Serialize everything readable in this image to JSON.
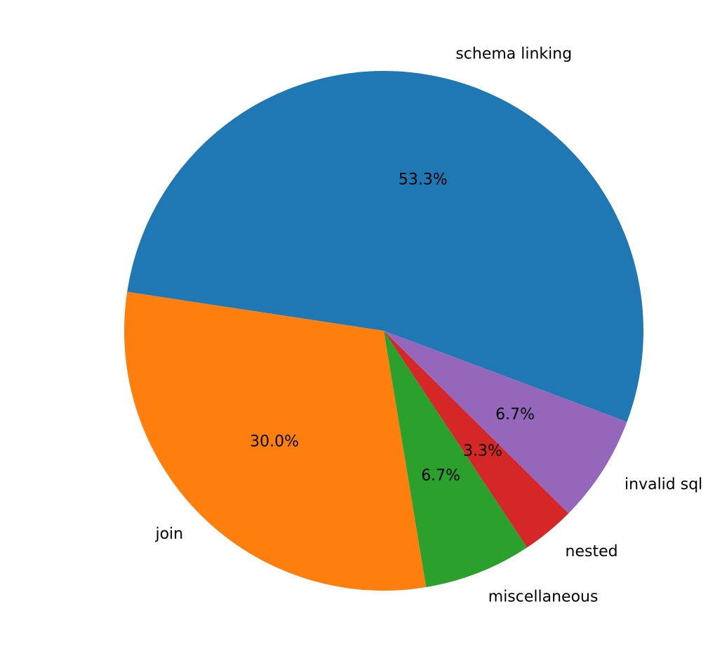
{
  "chart_data": {
    "type": "pie",
    "title": "",
    "slices": [
      {
        "label": "schema linking",
        "value": 53.3,
        "pct_text": "53.3%",
        "color": "#1f77b4"
      },
      {
        "label": "join",
        "value": 30.0,
        "pct_text": "30.0%",
        "color": "#ff7f0e"
      },
      {
        "label": "miscellaneous",
        "value": 6.7,
        "pct_text": "6.7%",
        "color": "#2ca02c"
      },
      {
        "label": "nested",
        "value": 3.3,
        "pct_text": "3.3%",
        "color": "#d62728"
      },
      {
        "label": "invalid sql",
        "value": 6.7,
        "pct_text": "6.7%",
        "color": "#9467bd"
      }
    ],
    "start_angle_deg": -20.5,
    "direction": "counterclockwise",
    "legend": "none"
  }
}
